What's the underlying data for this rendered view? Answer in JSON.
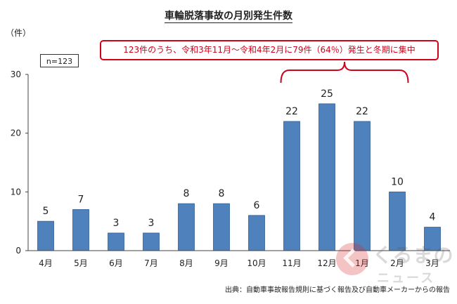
{
  "chart_data": {
    "type": "bar",
    "title": "車輪脱落事故の月別発生件数",
    "unit_label": "（件）",
    "sample_size": "n=123",
    "callout": "123件のうち、令和3年11月～令和4年2月に79件（64％）発生と冬期に集中",
    "categories": [
      "4月",
      "5月",
      "6月",
      "7月",
      "8月",
      "9月",
      "10月",
      "11月",
      "12月",
      "1月",
      "2月",
      "3月"
    ],
    "values": [
      5,
      7,
      3,
      3,
      8,
      8,
      6,
      22,
      25,
      22,
      10,
      4
    ],
    "ylim": [
      0,
      30
    ],
    "yticks": [
      0,
      10,
      20,
      30
    ],
    "bar_color": "#4f81bd",
    "source": "出典：自動車事故報告規則に基づく報告及び自動車メーカーからの報告",
    "grid": false,
    "legend": "none"
  },
  "watermark": {
    "brand": "くるまの",
    "sub": "ニュース",
    "color": "#d62828"
  }
}
